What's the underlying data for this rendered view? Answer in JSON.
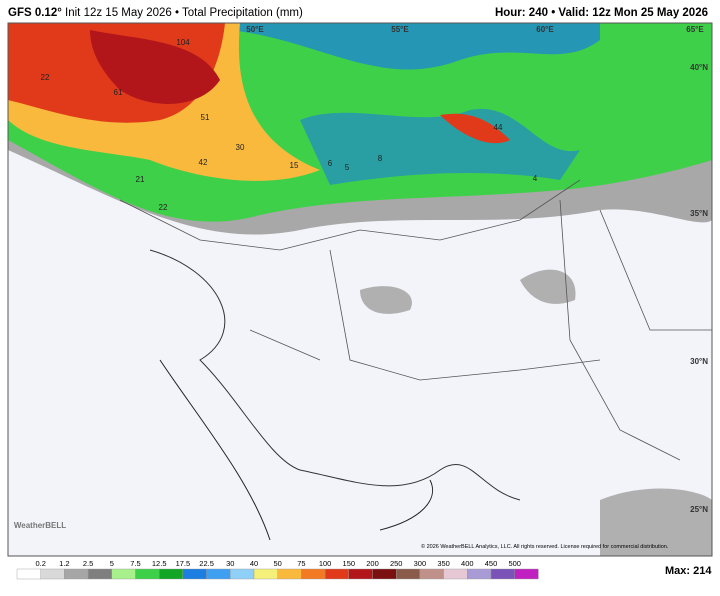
{
  "header": {
    "model": "GFS 0.12°",
    "run": "Init 12z 15 May 2026",
    "separator": "•",
    "product": "Total Precipitation (mm)",
    "hour": "Hour: 240",
    "valid": "Valid: 12z Mon 25 May 2026"
  },
  "map": {
    "lon_labels": [
      "50°E",
      "55°E",
      "60°E",
      "65°E"
    ],
    "lat_labels": [
      "40°N",
      "35°N",
      "30°N",
      "25°N"
    ],
    "values": [
      "104",
      "22",
      "61",
      "51",
      "42",
      "30",
      "15",
      "6",
      "5",
      "8",
      "44",
      "4",
      "21",
      "22"
    ],
    "copyright": "© 2026 WeatherBELL Analytics, LLC. All rights reserved. License required for commercial distribution.",
    "logo": "WeatherBELL"
  },
  "legend": {
    "labels": [
      "0.2",
      "1.2",
      "2.5",
      "5",
      "7.5",
      "12.5",
      "17.5",
      "22.5",
      "30",
      "40",
      "50",
      "75",
      "100",
      "150",
      "200",
      "250",
      "300",
      "350",
      "400",
      "450",
      "500"
    ],
    "colors": [
      "#ffffff",
      "#d9d9d9",
      "#a6a6a6",
      "#7f7f7f",
      "#a8f08c",
      "#3fd04a",
      "#13a526",
      "#1b7ee0",
      "#3fa0f2",
      "#8fd0f8",
      "#f4f07a",
      "#f9b93d",
      "#f37a22",
      "#e03a1a",
      "#b2151a",
      "#7a1010",
      "#8a5a4a",
      "#c0908a",
      "#e6c8d4",
      "#a89ad4",
      "#7b52b8",
      "#c020c0"
    ],
    "max": "Max: 214"
  }
}
